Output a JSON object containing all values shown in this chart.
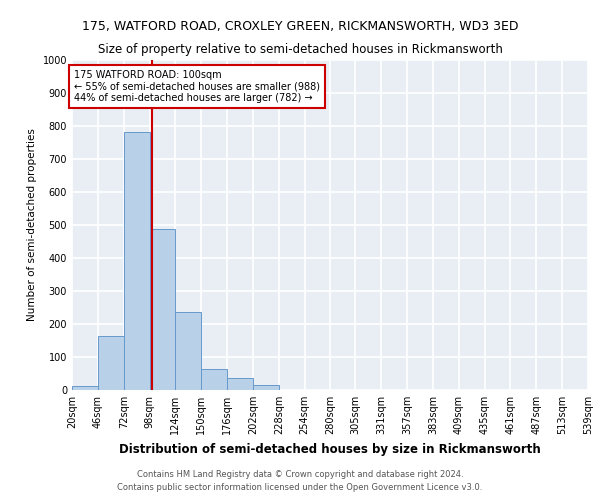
{
  "title1": "175, WATFORD ROAD, CROXLEY GREEN, RICKMANSWORTH, WD3 3ED",
  "title2": "Size of property relative to semi-detached houses in Rickmansworth",
  "xlabel": "Distribution of semi-detached houses by size in Rickmansworth",
  "ylabel": "Number of semi-detached properties",
  "bin_edges": [
    20,
    46,
    72,
    98,
    124,
    150,
    176,
    202,
    228,
    254,
    280,
    305,
    331,
    357,
    383,
    409,
    435,
    461,
    487,
    513,
    539
  ],
  "bar_heights": [
    12,
    163,
    782,
    488,
    237,
    63,
    35,
    15,
    0,
    0,
    0,
    0,
    0,
    0,
    0,
    0,
    0,
    0,
    0,
    0
  ],
  "bar_color": "#b8d0e8",
  "bar_edge_color": "#6699cc",
  "background_color": "#e8eef4",
  "grid_color": "#ffffff",
  "vline_x": 100,
  "vline_color": "#cc0000",
  "annotation_text": "175 WATFORD ROAD: 100sqm\n← 55% of semi-detached houses are smaller (988)\n44% of semi-detached houses are larger (782) →",
  "annotation_box_color": "#ffffff",
  "annotation_box_edge": "#cc0000",
  "ylim": [
    0,
    1000
  ],
  "yticks": [
    0,
    100,
    200,
    300,
    400,
    500,
    600,
    700,
    800,
    900,
    1000
  ],
  "tick_labels": [
    "20sqm",
    "46sqm",
    "72sqm",
    "98sqm",
    "124sqm",
    "150sqm",
    "176sqm",
    "202sqm",
    "228sqm",
    "254sqm",
    "280sqm",
    "305sqm",
    "331sqm",
    "357sqm",
    "383sqm",
    "409sqm",
    "435sqm",
    "461sqm",
    "487sqm",
    "513sqm",
    "539sqm"
  ],
  "footnote1": "Contains HM Land Registry data © Crown copyright and database right 2024.",
  "footnote2": "Contains public sector information licensed under the Open Government Licence v3.0.",
  "title1_fontsize": 9,
  "title2_fontsize": 8.5,
  "xlabel_fontsize": 8.5,
  "ylabel_fontsize": 7.5,
  "tick_fontsize": 7,
  "footnote_fontsize": 6,
  "annotation_fontsize": 7
}
